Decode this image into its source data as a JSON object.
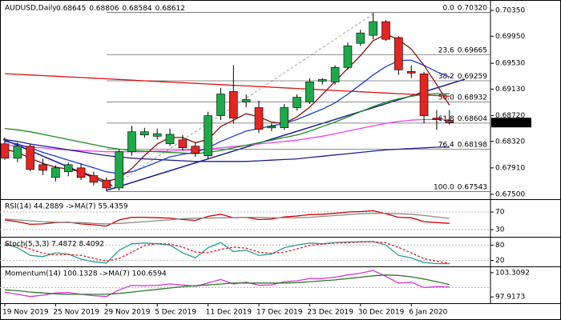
{
  "chart_data": [
    {
      "type": "candlestick",
      "symbol": "AUDUSD,Daily",
      "header_values": [
        0.68645,
        0.68806,
        0.68584,
        0.68612
      ],
      "categories": [
        "19 Nov 2019",
        null,
        null,
        null,
        "25 Nov 2019",
        null,
        null,
        null,
        "29 Nov 2019",
        null,
        null,
        null,
        "5 Dec 2019",
        null,
        null,
        null,
        "11 Dec 2019",
        null,
        null,
        null,
        "17 Dec 2019",
        null,
        null,
        null,
        "23 Dec 2019",
        null,
        null,
        null,
        "30 Dec 2019",
        null,
        null,
        null,
        "6 Jan 2020",
        null,
        null,
        null
      ],
      "open": [
        0.68283,
        0.68059,
        0.68246,
        0.6796,
        0.67761,
        0.6785,
        0.6791,
        0.6779,
        0.6772,
        0.67599,
        0.68159,
        0.6842,
        0.684,
        0.68283,
        0.68345,
        0.68246,
        0.68097,
        0.68719,
        0.69093,
        0.6893,
        0.68844,
        0.6853,
        0.68532,
        0.68844,
        0.68931,
        0.69254,
        0.69242,
        0.69466,
        0.6984,
        0.69964,
        0.70176,
        0.6993,
        0.69404,
        0.69367,
        0.68682,
        0.68645
      ],
      "high": [
        0.68383,
        0.683,
        0.6828,
        0.6805,
        0.6795,
        0.6799,
        0.6798,
        0.6785,
        0.6776,
        0.682,
        0.6856,
        0.6853,
        0.6852,
        0.6852,
        0.6842,
        0.683,
        0.6878,
        0.6915,
        0.695,
        0.6905,
        0.6895,
        0.686,
        0.689,
        0.6905,
        0.693,
        0.693,
        0.695,
        0.6985,
        0.7005,
        0.70313,
        0.702,
        0.6995,
        0.695,
        0.694,
        0.68806,
        0.68806
      ],
      "low": [
        0.68034,
        0.68,
        0.6786,
        0.678,
        0.677,
        0.6778,
        0.6772,
        0.6764,
        0.67549,
        0.6756,
        0.681,
        0.6838,
        0.6835,
        0.6825,
        0.6818,
        0.6808,
        0.6805,
        0.6865,
        0.686,
        0.6885,
        0.6845,
        0.6848,
        0.685,
        0.688,
        0.689,
        0.692,
        0.692,
        0.6943,
        0.698,
        0.699,
        0.6988,
        0.6935,
        0.693,
        0.686,
        0.685,
        0.68584
      ],
      "close": [
        0.68059,
        0.68246,
        0.67885,
        0.67872,
        0.6791,
        0.6796,
        0.67761,
        0.67686,
        0.67599,
        0.68159,
        0.6847,
        0.6847,
        0.6844,
        0.6843,
        0.68221,
        0.68134,
        0.68719,
        0.69055,
        0.68682,
        0.68968,
        0.68507,
        0.68557,
        0.68844,
        0.69005,
        0.69242,
        0.69279,
        0.69466,
        0.69802,
        0.70001,
        0.70176,
        0.69902,
        0.69429,
        0.69379,
        0.68719,
        0.68657,
        0.68612
      ],
      "up_color": "#1ea94a",
      "down_color": "#e52521",
      "ylim": [
        0.67437,
        0.70462
      ],
      "yticks": [
        {
          "value": 0.7035,
          "label": "0.70350"
        },
        {
          "value": 0.6995,
          "label": "0.69950"
        },
        {
          "value": 0.6953,
          "label": "0.69530"
        },
        {
          "value": 0.6913,
          "label": "0.69130"
        },
        {
          "value": 0.6872,
          "label": "0.68720"
        },
        {
          "value": 0.6832,
          "label": "0.68320"
        },
        {
          "value": 0.6791,
          "label": "0.67910"
        },
        {
          "value": 0.675,
          "label": "0.67500"
        }
      ],
      "last_price": 0.68612,
      "overlays": [
        {
          "color": "#e01010",
          "values": [
            0.6937,
            0.6936,
            0.6935,
            0.6934,
            0.6933,
            0.6932,
            0.6931,
            0.693,
            0.6929,
            0.6928,
            0.6927,
            0.6926,
            0.6925,
            0.6924,
            0.6923,
            0.6922,
            0.6921,
            0.692,
            0.6919,
            0.6918,
            0.6917,
            0.6916,
            0.6915,
            0.6914,
            0.6913,
            0.6912,
            0.6911,
            0.691,
            0.6909,
            0.6908,
            0.6907,
            0.6906,
            0.6905,
            0.6904,
            0.6903,
            0.6902
          ]
        },
        {
          "color": "#ee44ee",
          "values": [
            0.6826,
            0.6825,
            0.6823,
            0.6822,
            0.682,
            0.6819,
            0.6818,
            0.6817,
            0.6816,
            0.6816,
            0.6816,
            0.6816,
            0.6817,
            0.6817,
            0.6818,
            0.6819,
            0.682,
            0.6822,
            0.6824,
            0.6826,
            0.6828,
            0.683,
            0.6832,
            0.6834,
            0.6837,
            0.684,
            0.6844,
            0.6848,
            0.6852,
            0.6856,
            0.686,
            0.6863,
            0.6865,
            0.6866,
            0.6866,
            0.6866
          ]
        },
        {
          "color": "#1a8f1a",
          "values": [
            0.6852,
            0.685,
            0.6847,
            0.6843,
            0.6839,
            0.6835,
            0.6831,
            0.6827,
            0.6823,
            0.682,
            0.6818,
            0.6817,
            0.6816,
            0.6815,
            0.6814,
            0.6813,
            0.6815,
            0.6818,
            0.6822,
            0.6826,
            0.683,
            0.6834,
            0.6838,
            0.6842,
            0.6848,
            0.6855,
            0.6862,
            0.687,
            0.6878,
            0.6886,
            0.6893,
            0.6898,
            0.6902,
            0.6905,
            0.6906,
            0.6906
          ]
        },
        {
          "color": "#1f1f8f",
          "values": [
            0.6835,
            0.6832,
            0.6828,
            0.6825,
            0.6822,
            0.6819,
            0.6816,
            0.6813,
            0.681,
            0.6808,
            0.6806,
            0.6805,
            0.6804,
            0.6803,
            0.6802,
            0.6801,
            0.6801,
            0.6801,
            0.6801,
            0.6801,
            0.6802,
            0.6803,
            0.6804,
            0.6805,
            0.6807,
            0.6809,
            0.6811,
            0.6813,
            0.6815,
            0.6817,
            0.6819,
            0.682,
            0.6821,
            0.6822,
            0.6823,
            0.6823
          ]
        },
        {
          "color": "#1a3fe0",
          "values": [
            0.6832,
            0.6828,
            0.6822,
            0.6815,
            0.6809,
            0.6803,
            0.6797,
            0.6791,
            0.6785,
            0.6782,
            0.6785,
            0.6792,
            0.68,
            0.6808,
            0.6812,
            0.6815,
            0.6822,
            0.6832,
            0.684,
            0.6848,
            0.6852,
            0.6856,
            0.686,
            0.6866,
            0.6874,
            0.6882,
            0.6892,
            0.6905,
            0.692,
            0.6935,
            0.6948,
            0.6957,
            0.6958,
            0.695,
            0.694,
            0.6932
          ]
        },
        {
          "color": "#8b1010",
          "values": [
            0.682,
            0.6815,
            0.6806,
            0.6798,
            0.6792,
            0.6789,
            0.6785,
            0.6778,
            0.677,
            0.6775,
            0.679,
            0.681,
            0.6828,
            0.6838,
            0.6838,
            0.683,
            0.6835,
            0.6855,
            0.6865,
            0.6875,
            0.687,
            0.6862,
            0.686,
            0.687,
            0.6885,
            0.6905,
            0.6925,
            0.6945,
            0.6965,
            0.6988,
            0.6998,
            0.699,
            0.6975,
            0.695,
            0.692,
            0.6888
          ]
        }
      ],
      "fib_levels": [
        {
          "level": "0.0",
          "price": {
            "value": 0.7032,
            "label": "0.70320"
          }
        },
        {
          "level": "23.6",
          "price": 0.69665
        },
        {
          "level": "38.2",
          "price": 0.69259
        },
        {
          "level": "50.0",
          "price": 0.68932
        },
        {
          "level": "61.8",
          "price": 0.68604
        },
        {
          "level": "76.4",
          "price": 0.68198
        },
        {
          "level": "100.0",
          "price": 0.67543
        }
      ]
    },
    {
      "type": "line",
      "title": "RSI(14) 44.2889 ->MA(7) 55.4359",
      "ylim": [
        15.5,
        95.5
      ],
      "yticks": [
        70,
        30
      ],
      "series": [
        {
          "color": "#cc0000",
          "values": [
            52,
            48,
            42,
            43,
            46,
            47,
            43,
            41,
            38,
            52,
            58,
            58,
            57,
            56,
            53,
            51,
            60,
            65,
            57,
            58,
            53,
            54,
            59,
            61,
            64,
            65,
            67,
            70,
            71,
            73,
            66,
            58,
            57,
            48,
            46,
            44.2889
          ]
        },
        {
          "color": "#8c8c8c",
          "values": [
            54,
            52,
            50,
            48,
            47,
            46,
            46,
            44,
            43,
            44,
            46,
            48,
            50,
            52,
            55,
            56,
            56,
            57,
            57,
            58,
            58,
            57,
            57,
            57,
            58,
            60,
            62,
            64,
            66,
            67,
            67,
            66,
            65,
            62,
            59,
            55.4359
          ]
        }
      ]
    },
    {
      "type": "line",
      "title": "Stoch(5,3,3) 7.4872 8.4092",
      "ylim": [
        -3,
        106
      ],
      "yticks": [
        80,
        20
      ],
      "series": [
        {
          "color": "#2a9d9d",
          "values": [
            85,
            70,
            40,
            35,
            50,
            45,
            25,
            15,
            10,
            60,
            85,
            88,
            85,
            80,
            50,
            30,
            70,
            90,
            55,
            60,
            40,
            45,
            70,
            80,
            88,
            85,
            90,
            92,
            93,
            94,
            80,
            40,
            30,
            12,
            8,
            7.4872
          ]
        },
        {
          "color": "#dd2222",
          "dash": true,
          "values": [
            80,
            78,
            65,
            48,
            42,
            43,
            40,
            28,
            17,
            28,
            52,
            78,
            86,
            84,
            72,
            53,
            50,
            63,
            72,
            68,
            52,
            48,
            52,
            65,
            79,
            84,
            88,
            89,
            92,
            93,
            89,
            71,
            50,
            27,
            17,
            8.4092
          ]
        }
      ]
    },
    {
      "type": "line",
      "title": "Momentum(14) 100.1328 ->MA(7) 100.6594",
      "ylim": [
        96.7,
        104.35
      ],
      "yticks": [
        103.3092,
        97.9173
      ],
      "reference": 100,
      "series": [
        {
          "color": "#dd33dd",
          "values": [
            99,
            98.5,
            98,
            98.3,
            98.8,
            98.9,
            98.5,
            98.2,
            98,
            99.5,
            100.5,
            100.4,
            100.5,
            100.8,
            100.6,
            100.3,
            101,
            101.8,
            100.8,
            101.2,
            100.5,
            100.6,
            101.3,
            101.5,
            102,
            102,
            102.3,
            102.8,
            103.2,
            103.8,
            102.5,
            101,
            101.2,
            100,
            100.2,
            100.1328
          ]
        },
        {
          "color": "#2a7a2a",
          "values": [
            99.5,
            99.3,
            99,
            98.8,
            98.6,
            98.5,
            98.5,
            98.5,
            98.5,
            98.7,
            99,
            99.3,
            99.6,
            99.9,
            100.2,
            100.4,
            100.6,
            100.8,
            101,
            101,
            101,
            101,
            101,
            101.1,
            101.3,
            101.5,
            101.7,
            102,
            102.3,
            102.6,
            102.8,
            102.7,
            102.4,
            101.9,
            101.3,
            100.6594
          ]
        }
      ]
    }
  ]
}
